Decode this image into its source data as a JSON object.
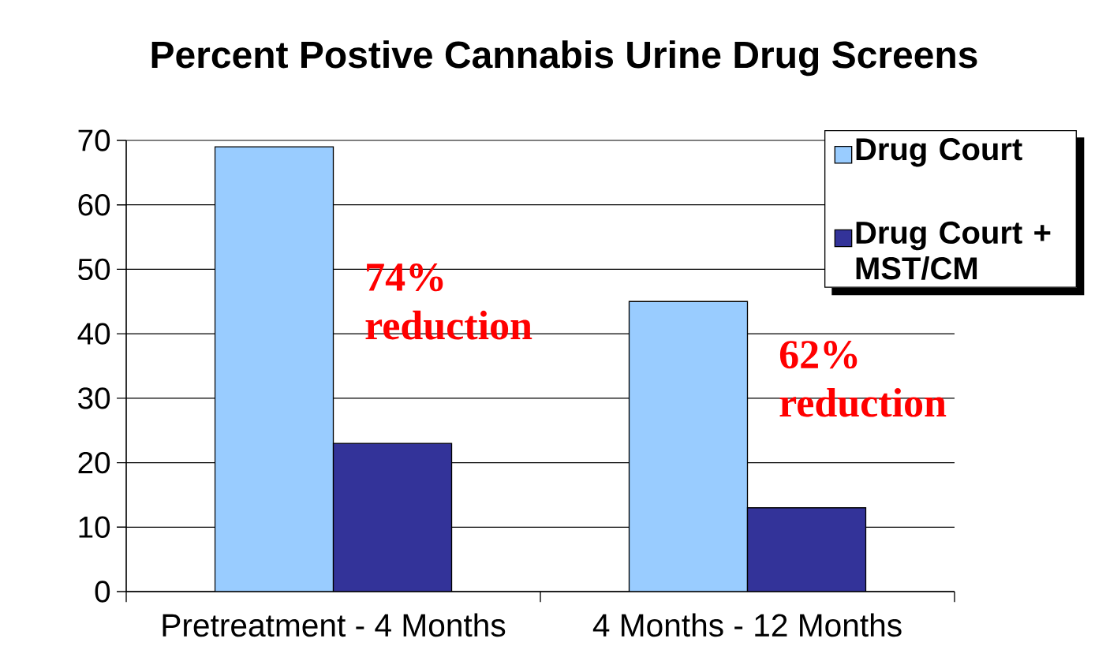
{
  "chart_data": {
    "type": "bar",
    "title": "Percent Postive Cannabis Urine Drug Screens",
    "categories": [
      "Pretreatment - 4 Months",
      "4 Months - 12 Months"
    ],
    "series": [
      {
        "name": "Drug Court",
        "color": "#99ccff",
        "values": [
          69,
          45
        ]
      },
      {
        "name": "Drug Court + MST/CM",
        "color": "#333399",
        "values": [
          23,
          13
        ]
      }
    ],
    "ylim": [
      0,
      70
    ],
    "yticks": [
      0,
      10,
      20,
      30,
      40,
      50,
      60,
      70
    ],
    "grid": "y",
    "legend": "top right",
    "annotations": [
      {
        "text": "74% reduction",
        "x": "Pretreatment - 4 Months",
        "y": 45
      },
      {
        "text": "62% reduction",
        "x": "4 Months - 12 Months",
        "y": 33
      }
    ]
  }
}
